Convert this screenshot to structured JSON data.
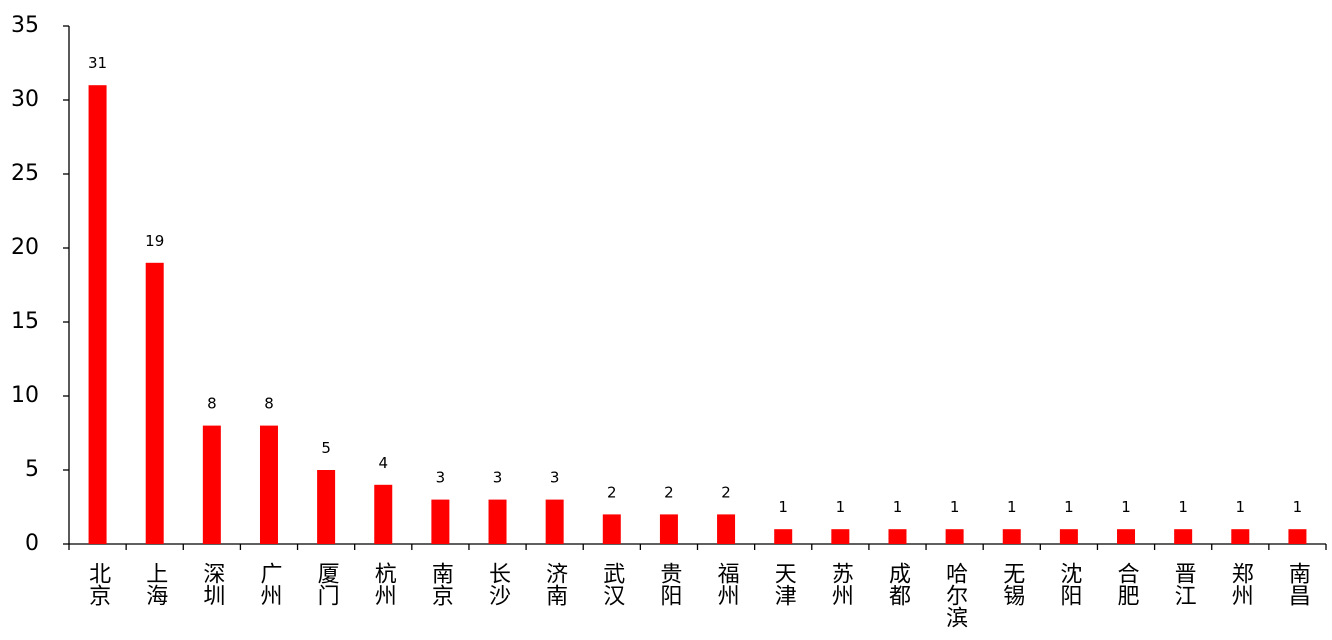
{
  "chart_data": {
    "type": "bar",
    "categories": [
      "北京",
      "上海",
      "深圳",
      "广州",
      "厦门",
      "杭州",
      "南京",
      "长沙",
      "济南",
      "武汉",
      "贵阳",
      "福州",
      "天津",
      "苏州",
      "成都",
      "哈尔滨",
      "无锡",
      "沈阳",
      "合肥",
      "晋江",
      "郑州",
      "南昌"
    ],
    "values": [
      31,
      19,
      8,
      8,
      5,
      4,
      3,
      3,
      3,
      2,
      2,
      2,
      1,
      1,
      1,
      1,
      1,
      1,
      1,
      1,
      1,
      1
    ],
    "title": "",
    "xlabel": "",
    "ylabel": "",
    "ylim": [
      0,
      35
    ],
    "yticks": [
      0,
      5,
      10,
      15,
      20,
      25,
      30,
      35
    ],
    "bar_color": "#ff0000",
    "data_labels": true,
    "grid": false,
    "legend": "none"
  }
}
